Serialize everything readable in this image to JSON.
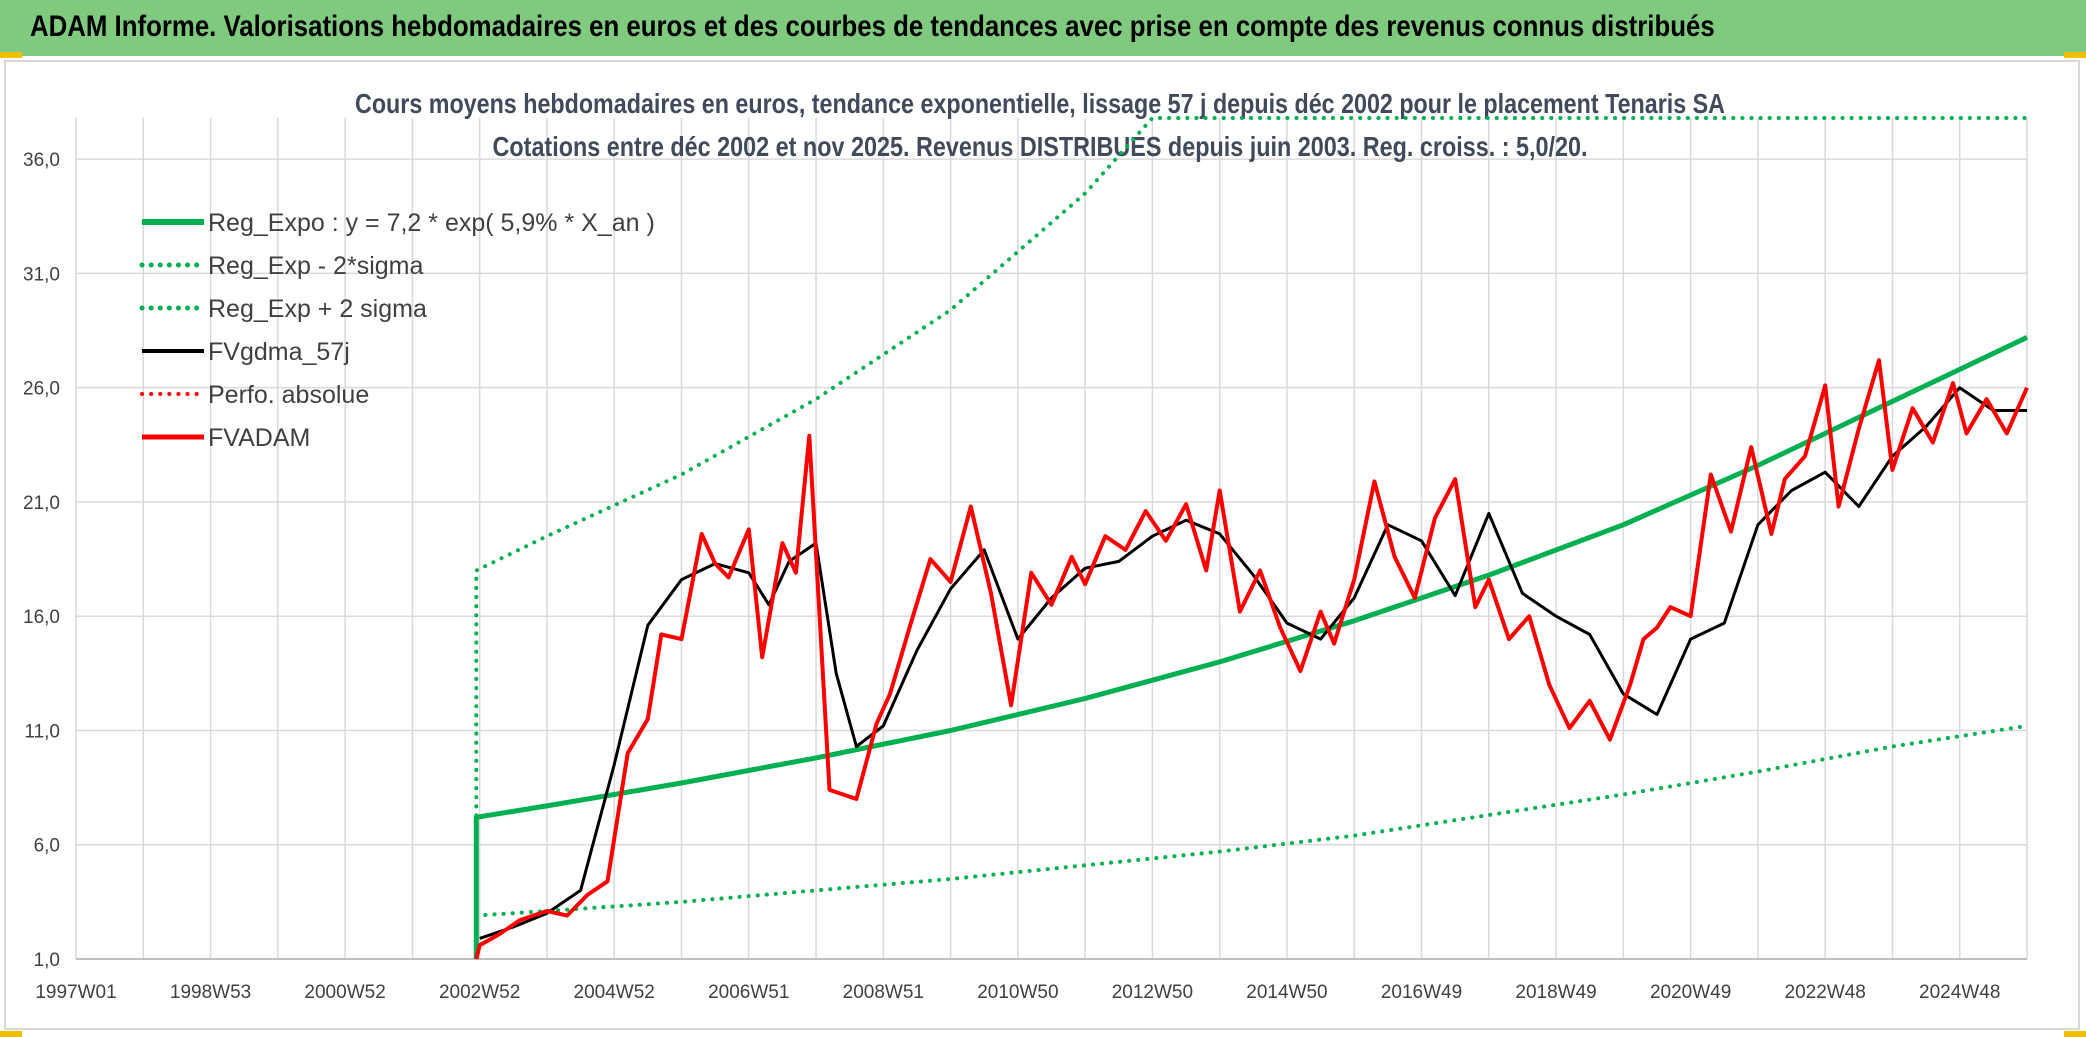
{
  "header": {
    "title": "ADAM Informe. Valorisations hebdomadaires en euros et des courbes de tendances avec prise en compte des revenus connus distribués"
  },
  "chart_data": {
    "type": "line",
    "title": "Cours moyens hebdomadaires en euros, tendance exponentielle, lissage 57 j depuis déc 2002 pour le placement Tenaris SA",
    "subtitle": "Cotations entre déc 2002 et nov 2025. Revenus DISTRIBUES depuis juin 2003. Reg. croiss. : 5,0/20.",
    "xlabel": "",
    "ylabel": "",
    "x_tick_labels": [
      "1997W01",
      "1998W53",
      "2000W52",
      "2002W52",
      "2004W52",
      "2006W51",
      "2008W51",
      "2010W50",
      "2012W50",
      "2014W50",
      "2016W49",
      "2018W49",
      "2020W49",
      "2022W48",
      "2024W48"
    ],
    "x_tick_years": [
      1997.0,
      1999.0,
      2001.0,
      2003.0,
      2005.0,
      2007.0,
      2009.0,
      2011.0,
      2013.0,
      2015.0,
      2017.0,
      2019.0,
      2021.0,
      2023.0,
      2025.0
    ],
    "xlim": [
      1997.0,
      2026.0
    ],
    "y_tick_labels": [
      "1,0",
      "6,0",
      "11,0",
      "16,0",
      "21,0",
      "26,0",
      "31,0",
      "36,0"
    ],
    "y_ticks": [
      1,
      6,
      11,
      16,
      21,
      26,
      31,
      36
    ],
    "ylim": [
      1,
      37.8
    ],
    "grid": true,
    "legend_position": "top-left",
    "series": [
      {
        "name": "Reg_Expo : y = 7,2 * exp( 5,9% *  X_an )",
        "color": "#00b050",
        "style": "solid",
        "width": 5,
        "x": [
          2002.95,
          2002.95,
          2004.0,
          2006.0,
          2008.0,
          2010.0,
          2012.0,
          2014.0,
          2016.0,
          2018.0,
          2020.0,
          2022.0,
          2024.0,
          2026.0
        ],
        "y": [
          1.0,
          7.2,
          7.7,
          8.7,
          9.8,
          11.0,
          12.4,
          14.0,
          15.8,
          17.8,
          20.0,
          22.6,
          25.4,
          28.2
        ]
      },
      {
        "name": "Reg_Exp - 2*sigma",
        "color": "#00b050",
        "style": "dotted",
        "width": 4,
        "x": [
          2002.95,
          2004.0,
          2006.0,
          2008.0,
          2010.0,
          2012.0,
          2014.0,
          2016.0,
          2018.0,
          2020.0,
          2022.0,
          2024.0,
          2026.0
        ],
        "y": [
          2.9,
          3.1,
          3.5,
          4.0,
          4.5,
          5.1,
          5.7,
          6.4,
          7.3,
          8.2,
          9.2,
          10.3,
          11.2
        ]
      },
      {
        "name": "Reg_Exp + 2 sigma",
        "color": "#00b050",
        "style": "dotted",
        "width": 4,
        "x": [
          2002.95,
          2002.95,
          2004.0,
          2006.0,
          2008.0,
          2010.0,
          2012.0,
          2013.0,
          2023.0,
          2026.0
        ],
        "y": [
          2.9,
          18.0,
          19.5,
          22.2,
          25.5,
          29.4,
          34.5,
          37.8,
          37.8,
          37.8
        ]
      },
      {
        "name": "FVgdma_57j",
        "color": "#000000",
        "style": "solid",
        "width": 3,
        "x": [
          2003.0,
          2003.5,
          2004.0,
          2004.5,
          2005.0,
          2005.5,
          2006.0,
          2006.5,
          2007.0,
          2007.3,
          2007.6,
          2008.0,
          2008.3,
          2008.6,
          2009.0,
          2009.5,
          2010.0,
          2010.5,
          2011.0,
          2011.5,
          2012.0,
          2012.5,
          2013.0,
          2013.5,
          2014.0,
          2014.5,
          2015.0,
          2015.5,
          2016.0,
          2016.5,
          2017.0,
          2017.5,
          2018.0,
          2018.5,
          2019.0,
          2019.5,
          2020.0,
          2020.5,
          2021.0,
          2021.5,
          2022.0,
          2022.5,
          2023.0,
          2023.5,
          2024.0,
          2024.5,
          2025.0,
          2025.5,
          2026.0
        ],
        "y": [
          1.9,
          2.4,
          3.0,
          4.0,
          9.5,
          15.6,
          17.6,
          18.3,
          17.9,
          16.5,
          18.4,
          19.2,
          13.5,
          10.3,
          11.2,
          14.5,
          17.2,
          18.9,
          15.0,
          16.8,
          18.1,
          18.4,
          19.5,
          20.2,
          19.6,
          17.8,
          15.7,
          15.0,
          16.8,
          20.0,
          19.3,
          16.9,
          20.5,
          17.0,
          16.0,
          15.2,
          12.6,
          11.7,
          15.0,
          15.7,
          20.0,
          21.5,
          22.3,
          20.8,
          23.0,
          24.3,
          26.0,
          25.0,
          25.0
        ]
      },
      {
        "name": "Perfo. absolue",
        "color": "#ff0000",
        "style": "dotted",
        "width": 3,
        "x": [],
        "y": []
      },
      {
        "name": "FVADAM",
        "color": "#ff0000",
        "style": "solid",
        "width": 4,
        "x": [
          2002.95,
          2003.0,
          2003.3,
          2003.6,
          2004.0,
          2004.3,
          2004.6,
          2004.9,
          2005.2,
          2005.5,
          2005.7,
          2006.0,
          2006.3,
          2006.5,
          2006.7,
          2007.0,
          2007.2,
          2007.5,
          2007.7,
          2007.9,
          2008.2,
          2008.6,
          2008.9,
          2009.1,
          2009.4,
          2009.7,
          2010.0,
          2010.3,
          2010.6,
          2010.9,
          2011.2,
          2011.5,
          2011.8,
          2012.0,
          2012.3,
          2012.6,
          2012.9,
          2013.2,
          2013.5,
          2013.8,
          2014.0,
          2014.3,
          2014.6,
          2014.9,
          2015.2,
          2015.5,
          2015.7,
          2016.0,
          2016.3,
          2016.6,
          2016.9,
          2017.2,
          2017.5,
          2017.8,
          2018.0,
          2018.3,
          2018.6,
          2018.9,
          2019.2,
          2019.5,
          2019.8,
          2020.1,
          2020.3,
          2020.5,
          2020.7,
          2021.0,
          2021.3,
          2021.6,
          2021.9,
          2022.2,
          2022.4,
          2022.7,
          2023.0,
          2023.2,
          2023.5,
          2023.8,
          2024.0,
          2024.3,
          2024.6,
          2024.9,
          2025.1,
          2025.4,
          2025.7,
          2026.0
        ],
        "y": [
          1.0,
          1.6,
          2.1,
          2.7,
          3.1,
          2.9,
          3.8,
          4.4,
          10.0,
          11.5,
          15.2,
          15.0,
          19.6,
          18.3,
          17.7,
          19.8,
          14.2,
          19.2,
          17.9,
          23.9,
          8.4,
          8.0,
          11.3,
          12.6,
          15.6,
          18.5,
          17.5,
          20.8,
          17.0,
          12.1,
          17.9,
          16.5,
          18.6,
          17.4,
          19.5,
          18.9,
          20.6,
          19.3,
          20.9,
          18.0,
          21.5,
          16.2,
          18.0,
          15.5,
          13.6,
          16.2,
          14.8,
          17.6,
          21.9,
          18.6,
          16.8,
          20.3,
          22.0,
          16.4,
          17.6,
          15.0,
          16.0,
          13.0,
          11.1,
          12.3,
          10.6,
          13.0,
          15.0,
          15.5,
          16.4,
          16.0,
          22.2,
          19.7,
          23.4,
          19.6,
          22.0,
          23.0,
          26.1,
          20.8,
          24.2,
          27.2,
          22.4,
          25.1,
          23.6,
          26.2,
          24.0,
          25.5,
          24.0,
          26.0
        ]
      }
    ]
  }
}
